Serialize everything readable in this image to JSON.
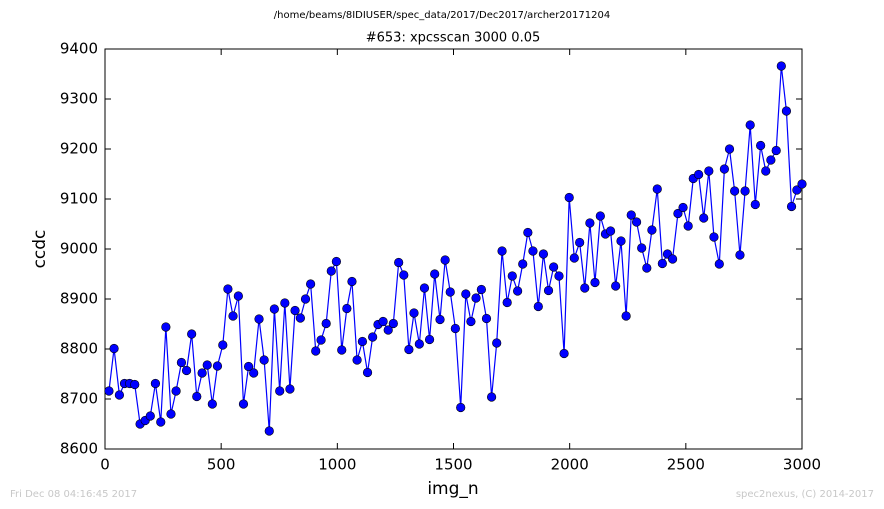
{
  "chart_data": {
    "type": "line",
    "header": "/home/beams/8IDIUSER/spec_data/2017/Dec2017/archer20171204",
    "title": "#653: xpcsscan 3000 0.05",
    "xlabel": "img_n",
    "ylabel": "ccdc",
    "footer_left": "Fri Dec 08 04:16:45 2017",
    "footer_right": "spec2nexus, (C) 2014-2017",
    "color": "#0000ff",
    "grid": false,
    "xlim": [
      0,
      3000
    ],
    "xticks": [
      0,
      500,
      1000,
      1500,
      2000,
      2500,
      3000
    ],
    "ylim": [
      8600,
      9400
    ],
    "yticks": [
      8600,
      8700,
      8800,
      8900,
      9000,
      9100,
      9200,
      9300,
      9400
    ],
    "x": [
      17,
      39,
      62,
      84,
      106,
      128,
      151,
      173,
      195,
      217,
      240,
      262,
      284,
      306,
      329,
      351,
      373,
      395,
      418,
      440,
      462,
      484,
      507,
      529,
      551,
      574,
      596,
      618,
      640,
      663,
      685,
      707,
      729,
      752,
      774,
      796,
      818,
      841,
      863,
      885,
      907,
      930,
      952,
      974,
      996,
      1019,
      1041,
      1063,
      1085,
      1108,
      1130,
      1152,
      1175,
      1197,
      1219,
      1241,
      1264,
      1286,
      1308,
      1330,
      1353,
      1375,
      1397,
      1419,
      1442,
      1464,
      1486,
      1508,
      1531,
      1553,
      1575,
      1597,
      1620,
      1642,
      1664,
      1686,
      1709,
      1731,
      1753,
      1776,
      1798,
      1820,
      1842,
      1865,
      1887,
      1909,
      1931,
      1954,
      1976,
      1998,
      2020,
      2043,
      2065,
      2087,
      2109,
      2132,
      2154,
      2176,
      2198,
      2221,
      2243,
      2265,
      2288,
      2310,
      2332,
      2354,
      2377,
      2399,
      2421,
      2443,
      2466,
      2488,
      2510,
      2532,
      2555,
      2577,
      2599,
      2621,
      2644,
      2666,
      2688,
      2710,
      2733,
      2755,
      2777,
      2799,
      2822,
      2844,
      2866,
      2889,
      2911,
      2933,
      2955,
      2978,
      3000
    ],
    "values": [
      8716,
      8801,
      8708,
      8731,
      8731,
      8729,
      8650,
      8657,
      8666,
      8731,
      8654,
      8844,
      8670,
      8716,
      8773,
      8757,
      8830,
      8705,
      8752,
      8768,
      8690,
      8766,
      8808,
      8920,
      8866,
      8906,
      8690,
      8765,
      8752,
      8860,
      8778,
      8636,
      8880,
      8716,
      8892,
      8720,
      8877,
      8862,
      8900,
      8930,
      8796,
      8818,
      8851,
      8956,
      8975,
      8798,
      8881,
      8935,
      8778,
      8815,
      8753,
      8824,
      8849,
      8855,
      8838,
      8851,
      8973,
      8948,
      8799,
      8872,
      8810,
      8922,
      8819,
      8950,
      8859,
      8978,
      8914,
      8841,
      8683,
      8910,
      8855,
      8902,
      8919,
      8861,
      8704,
      8812,
      8996,
      8893,
      8946,
      8916,
      8970,
      9033,
      8996,
      8885,
      8990,
      8917,
      8964,
      8946,
      8791,
      9103,
      8982,
      9013,
      8922,
      9052,
      8933,
      9066,
      9030,
      9036,
      8926,
      9016,
      8866,
      9068,
      9054,
      9002,
      8962,
      9038,
      9120,
      8971,
      8990,
      8980,
      9071,
      9083,
      9046,
      9141,
      9149,
      9062,
      9156,
      9024,
      8970,
      9160,
      9200,
      9116,
      8988,
      9116,
      9248,
      9089,
      9207,
      9156,
      9178,
      9197,
      9366,
      9276,
      9085,
      9118,
      9130
    ]
  }
}
